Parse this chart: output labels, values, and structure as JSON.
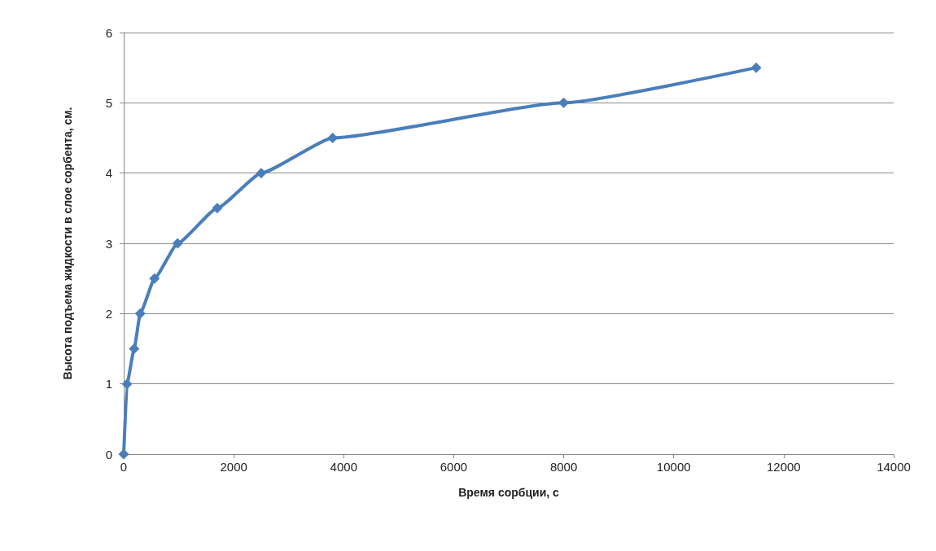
{
  "chart_data": {
    "type": "line",
    "xlabel": "Время сорбции, с",
    "ylabel": "Высота подъема жидкости в слое сорбента, см.",
    "x": [
      0,
      60,
      190,
      300,
      560,
      980,
      1700,
      2500,
      3800,
      8000,
      11500
    ],
    "series": [
      {
        "color": "#4a7ebb",
        "values": [
          0,
          1,
          1.5,
          2,
          2.5,
          3,
          3.5,
          4,
          4.5,
          5,
          5.5
        ]
      }
    ],
    "xlim": [
      0,
      14000
    ],
    "xticks": [
      0,
      2000,
      4000,
      6000,
      8000,
      10000,
      12000,
      14000
    ],
    "ylim": [
      0,
      6
    ],
    "yticks": [
      0,
      1,
      2,
      3,
      4,
      5,
      6
    ],
    "grid": "y",
    "marker": "diamond",
    "line_style": "solid"
  }
}
